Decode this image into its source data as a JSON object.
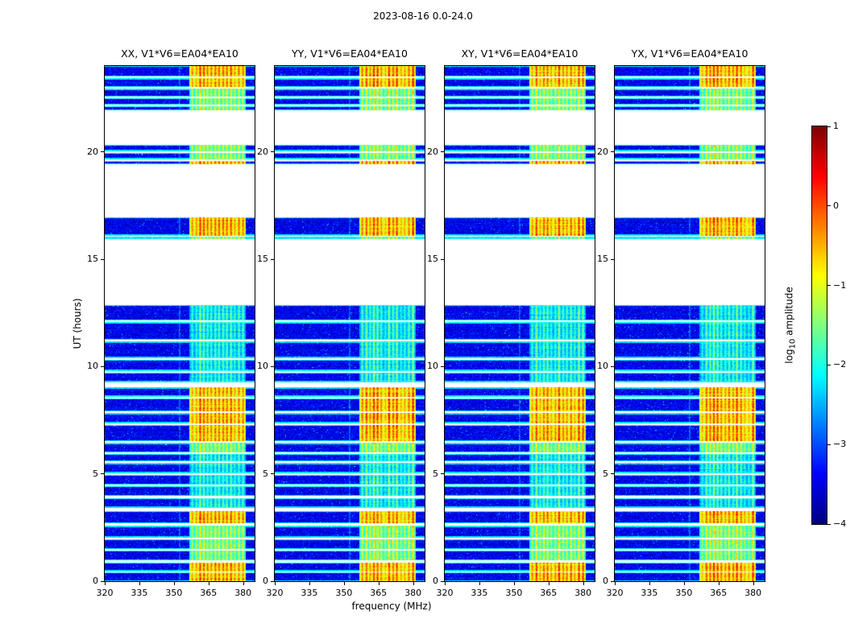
{
  "figure_title": "2023-08-16 0.0-24.0",
  "colorbar": {
    "label_log": "log",
    "label_sub": "10",
    "label_rest": " amplitude",
    "tick_labels": [
      "1",
      "0",
      "−1",
      "−2",
      "−3",
      "−4"
    ],
    "tick_values": [
      1,
      0,
      -1,
      -2,
      -3,
      -4
    ],
    "vmin": -4,
    "vmax": 1
  },
  "chart_data": {
    "type": "heatmap",
    "title": "2023-08-16 0.0-24.0",
    "xlabel": "frequency (MHz)",
    "ylabel": "UT (hours)",
    "panels": [
      {
        "label": "XX, V1*V6=EA04*EA10"
      },
      {
        "label": "YY, V1*V6=EA04*EA10"
      },
      {
        "label": "XY, V1*V6=EA04*EA10"
      },
      {
        "label": "YX, V1*V6=EA04*EA10"
      }
    ],
    "x_range": [
      320,
      385
    ],
    "x_ticks": [
      320,
      335,
      350,
      365,
      380
    ],
    "y_range": [
      0,
      24
    ],
    "y_ticks": [
      0,
      5,
      10,
      15,
      20
    ],
    "colormap": "jet",
    "color_scale": {
      "label": "log10 amplitude",
      "min": -4,
      "max": 1,
      "ticks": [
        1,
        0,
        -1,
        -2,
        -3,
        -4
      ]
    },
    "rfi_band_mhz": [
      356.8,
      381.2
    ],
    "band_stripes_mhz": [
      358,
      359.8,
      361.4,
      363,
      364.6,
      366.2,
      368,
      369.6,
      371.4,
      373,
      374.8,
      376.4,
      378.2,
      380
    ],
    "narrow_line_mhz": 352.5,
    "background_log_amp": [
      -3.8,
      -3.1
    ],
    "band_base_log_amp": {
      "strong": -1.2,
      "moderate": -2.05,
      "weak": -2.65
    },
    "time_segments": [
      {
        "t0": 0.0,
        "t1": 0.42,
        "band": "strong"
      },
      {
        "t0": 0.46,
        "t1": 0.88,
        "band": "strong"
      },
      {
        "t0": 0.96,
        "t1": 1.42,
        "band": "moderate"
      },
      {
        "t0": 1.5,
        "t1": 1.96,
        "band": "moderate"
      },
      {
        "t0": 2.04,
        "t1": 2.58,
        "band": "moderate"
      },
      {
        "t0": 2.7,
        "t1": 3.28,
        "band": "strong"
      },
      {
        "t0": 3.42,
        "t1": 3.88,
        "band": "weak"
      },
      {
        "t0": 3.96,
        "t1": 4.42,
        "band": "weak"
      },
      {
        "t0": 4.5,
        "t1": 4.96,
        "band": "weak"
      },
      {
        "t0": 5.04,
        "t1": 5.5,
        "band": "weak"
      },
      {
        "t0": 5.58,
        "t1": 5.92,
        "band": "weak"
      },
      {
        "t0": 6.0,
        "t1": 6.44,
        "band": "moderate"
      },
      {
        "t0": 6.52,
        "t1": 7.28,
        "band": "strong"
      },
      {
        "t0": 7.36,
        "t1": 7.82,
        "band": "strong"
      },
      {
        "t0": 7.9,
        "t1": 8.52,
        "band": "strong"
      },
      {
        "t0": 8.6,
        "t1": 9.02,
        "band": "strong"
      },
      {
        "t0": 9.28,
        "t1": 9.72,
        "band": "weak"
      },
      {
        "t0": 9.8,
        "t1": 10.32,
        "band": "weak"
      },
      {
        "t0": 10.4,
        "t1": 11.16,
        "band": "weak"
      },
      {
        "t0": 11.24,
        "t1": 12.06,
        "band": "weak"
      },
      {
        "t0": 12.14,
        "t1": 12.88,
        "band": "weak"
      },
      {
        "t0": 15.92,
        "t1": 16.04,
        "band": "moderate"
      },
      {
        "t0": 16.1,
        "t1": 16.96,
        "band": "strong"
      },
      {
        "t0": 19.42,
        "t1": 19.58,
        "band": "strong"
      },
      {
        "t0": 19.66,
        "t1": 19.96,
        "band": "moderate"
      },
      {
        "t0": 20.04,
        "t1": 20.34,
        "band": "moderate"
      },
      {
        "t0": 21.94,
        "t1": 22.12,
        "band": "moderate"
      },
      {
        "t0": 22.2,
        "t1": 22.5,
        "band": "moderate"
      },
      {
        "t0": 22.58,
        "t1": 22.94,
        "band": "moderate"
      },
      {
        "t0": 23.02,
        "t1": 23.42,
        "band": "strong"
      },
      {
        "t0": 23.5,
        "t1": 24.0,
        "band": "strong"
      }
    ]
  }
}
